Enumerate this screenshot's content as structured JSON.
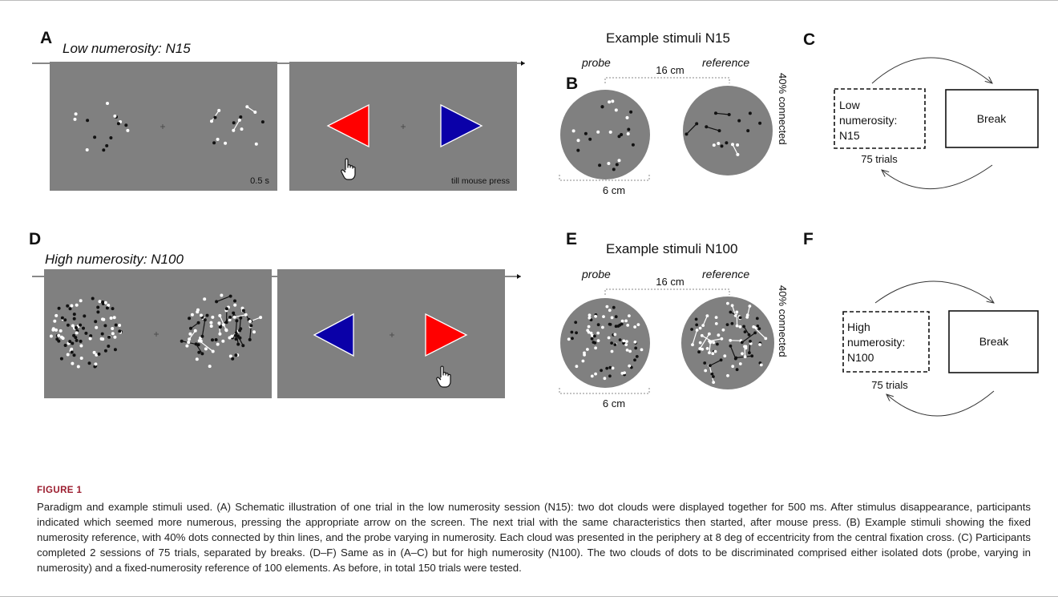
{
  "panels": {
    "A": {
      "letter": "A",
      "title": "Low numerosity: N15",
      "timing": "0.5 s",
      "response_timing": "till mouse press",
      "response_colors": {
        "left": "#ff0000",
        "right": "#0a00a8"
      }
    },
    "B": {
      "letter": "B",
      "title": "Example stimuli N15",
      "probe_label": "probe",
      "reference_label": "reference",
      "separation": "16 cm",
      "diameter": "6 cm",
      "connected": "40% connected"
    },
    "C": {
      "letter": "C",
      "session_lines": [
        "Low",
        "numerosity:",
        "N15"
      ],
      "break_label": "Break",
      "trials": "75 trials"
    },
    "D": {
      "letter": "D",
      "title": "High numerosity: N100",
      "response_colors": {
        "left": "#0a00a8",
        "right": "#ff0000"
      }
    },
    "E": {
      "letter": "E",
      "title": "Example stimuli N100",
      "probe_label": "probe",
      "reference_label": "reference",
      "separation": "16 cm",
      "diameter": "6 cm",
      "connected": "40% connected"
    },
    "F": {
      "letter": "F",
      "session_lines": [
        "High",
        "numerosity:",
        "N100"
      ],
      "break_label": "Break",
      "trials": "75 trials"
    }
  },
  "colors": {
    "screen_gray": "#808080",
    "accent_caption": "#9b1c2e"
  },
  "caption": {
    "label": "FIGURE 1",
    "text": "Paradigm and example stimuli used. (A) Schematic illustration of one trial in the low numerosity session (N15): two dot clouds were displayed together for 500 ms. After stimulus disappearance, participants indicated which seemed more numerous, pressing the appropriate arrow on the screen. The next trial with the same characteristics then started, after mouse press. (B) Example stimuli showing the fixed numerosity reference, with 40% dots connected by thin lines, and the probe varying in numerosity. Each cloud was presented in the periphery at 8 deg of eccentricity from the central fixation cross. (C) Participants completed 2 sessions of 75 trials, separated by breaks. (D–F) Same as in (A–C) but for high numerosity (N100). The two clouds of dots to be discriminated comprised either isolated dots (probe, varying in numerosity) and a fixed-numerosity reference of 100 elements. As before, in total 150 trials were tested."
  }
}
